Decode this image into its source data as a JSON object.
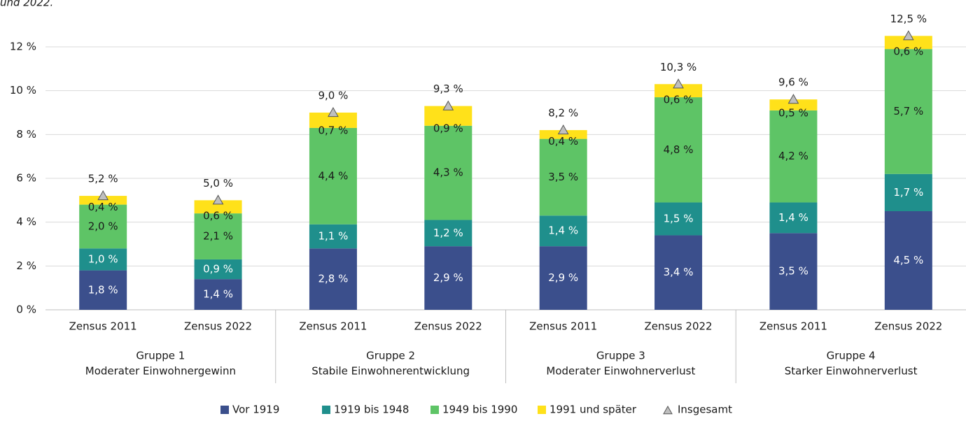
{
  "chart_data": {
    "type": "stacked_bar",
    "title": "und 2022.",
    "categories": [
      "Zensus 2011",
      "Zensus 2022",
      "Zensus 2011",
      "Zensus 2022",
      "Zensus 2011",
      "Zensus 2022",
      "Zensus 2011",
      "Zensus 2022"
    ],
    "groups": [
      {
        "name": "Gruppe 1",
        "description": "Moderater Einwohnergewinn"
      },
      {
        "name": "Gruppe 2",
        "description": "Stabile Einwohnerentwicklung"
      },
      {
        "name": "Gruppe 3",
        "description": "Moderater Einwohnerverlust"
      },
      {
        "name": "Gruppe 4",
        "description": "Starker Einwohnerverlust"
      }
    ],
    "series": [
      {
        "name": "Vor 1919",
        "color": "#3b4f8c",
        "label_color": "#ffffff",
        "values": [
          1.8,
          1.4,
          2.8,
          2.9,
          2.9,
          3.4,
          3.5,
          4.5
        ],
        "value_labels": [
          "1,8 %",
          "1,4 %",
          "2,8 %",
          "2,9 %",
          "2,9 %",
          "3,4 %",
          "3,5 %",
          "4,5 %"
        ]
      },
      {
        "name": "1919 bis 1948",
        "color": "#1f8f8c",
        "label_color": "#ffffff",
        "values": [
          1.0,
          0.9,
          1.1,
          1.2,
          1.4,
          1.5,
          1.4,
          1.7
        ],
        "value_labels": [
          "1,0 %",
          "0,9 %",
          "1,1 %",
          "1,2 %",
          "1,4 %",
          "1,5 %",
          "1,4 %",
          "1,7 %"
        ]
      },
      {
        "name": "1949 bis 1990",
        "color": "#5ec466",
        "label_color": "#1a1a1a",
        "values": [
          2.0,
          2.1,
          4.4,
          4.3,
          3.5,
          4.8,
          4.2,
          5.7
        ],
        "value_labels": [
          "2,0 %",
          "2,1 %",
          "4,4 %",
          "4,3 %",
          "3,5 %",
          "4,8 %",
          "4,2 %",
          "5,7 %"
        ]
      },
      {
        "name": "1991 und später",
        "color": "#ffe11a",
        "label_color": "#1a1a1a",
        "values": [
          0.4,
          0.6,
          0.7,
          0.9,
          0.4,
          0.6,
          0.5,
          0.6
        ],
        "value_labels": [
          "0,4 %",
          "0,6 %",
          "0,7 %",
          "0,9 %",
          "0,4 %",
          "0,6 %",
          "0,5 %",
          "0,6 %"
        ]
      }
    ],
    "total": {
      "name": "Insgesamt",
      "color": "#bfbfbf",
      "marker": "triangle",
      "values": [
        5.2,
        5.0,
        9.0,
        9.3,
        8.2,
        10.3,
        9.6,
        12.5
      ],
      "value_labels": [
        "5,2 %",
        "5,0 %",
        "9,0 %",
        "9,3 %",
        "8,2 %",
        "10,3 %",
        "9,6 %",
        "12,5 %"
      ]
    },
    "ylim": [
      0,
      12
    ],
    "yticks": [
      {
        "value": 0,
        "label": "0 %"
      },
      {
        "value": 2,
        "label": "2 %"
      },
      {
        "value": 4,
        "label": "4 %"
      },
      {
        "value": 6,
        "label": "6 %"
      },
      {
        "value": 8,
        "label": "8 %"
      },
      {
        "value": 10,
        "label": "10 %"
      },
      {
        "value": 12,
        "label": "12 %"
      }
    ],
    "grid": true,
    "legend": "bottom"
  }
}
